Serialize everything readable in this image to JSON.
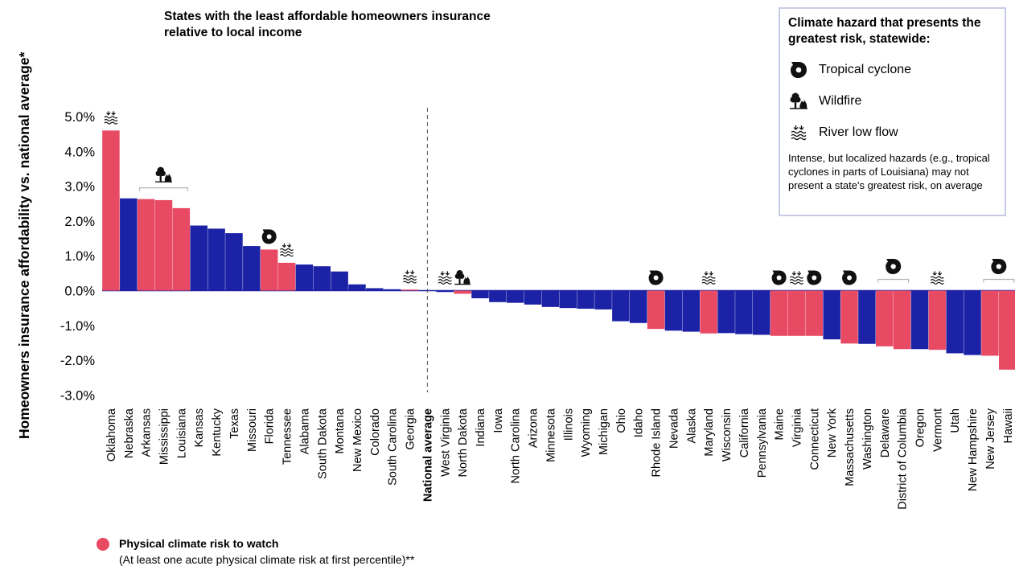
{
  "chart_data": {
    "type": "bar",
    "title": "States with the least affordable homeowners insurance relative to local income",
    "ylabel": "Homeowners insurance affordability vs. national average*",
    "ylim": [
      -3.0,
      5.0
    ],
    "yticks": [
      "5.0%",
      "4.0%",
      "3.0%",
      "2.0%",
      "1.0%",
      "0.0%",
      "-1.0%",
      "-2.0%",
      "-3.0%"
    ],
    "reference_category": "National average",
    "colors": {
      "risk": "#e84a63",
      "other": "#1b22a6"
    },
    "bars": [
      {
        "label": "Oklahoma",
        "value": 4.6,
        "risk": true,
        "icons": [
          "river"
        ]
      },
      {
        "label": "Nebraska",
        "value": 2.65,
        "risk": false,
        "icons": []
      },
      {
        "label": "Arkansas",
        "value": 2.63,
        "risk": true,
        "icons": []
      },
      {
        "label": "Mississippi",
        "value": 2.6,
        "risk": true,
        "icons": []
      },
      {
        "label": "Louisiana",
        "value": 2.37,
        "risk": true,
        "icons": []
      },
      {
        "label": "Kansas",
        "value": 1.87,
        "risk": false,
        "icons": []
      },
      {
        "label": "Kentucky",
        "value": 1.78,
        "risk": false,
        "icons": []
      },
      {
        "label": "Texas",
        "value": 1.65,
        "risk": false,
        "icons": []
      },
      {
        "label": "Missouri",
        "value": 1.28,
        "risk": false,
        "icons": []
      },
      {
        "label": "Florida",
        "value": 1.18,
        "risk": true,
        "icons": [
          "cyclone"
        ]
      },
      {
        "label": "Tennessee",
        "value": 0.8,
        "risk": true,
        "icons": [
          "river"
        ]
      },
      {
        "label": "Alabama",
        "value": 0.75,
        "risk": false,
        "icons": []
      },
      {
        "label": "South Dakota",
        "value": 0.7,
        "risk": false,
        "icons": []
      },
      {
        "label": "Montana",
        "value": 0.55,
        "risk": false,
        "icons": []
      },
      {
        "label": "New Mexico",
        "value": 0.18,
        "risk": false,
        "icons": []
      },
      {
        "label": "Colorado",
        "value": 0.07,
        "risk": false,
        "icons": []
      },
      {
        "label": "South Carolina",
        "value": 0.04,
        "risk": false,
        "icons": []
      },
      {
        "label": "Georgia",
        "value": 0.03,
        "risk": true,
        "icons": [
          "river"
        ]
      },
      {
        "label": "National average",
        "value": 0,
        "risk": false,
        "icons": [],
        "reference": true
      },
      {
        "label": "West Virginia",
        "value": -0.04,
        "risk": false,
        "icons": [
          "river"
        ]
      },
      {
        "label": "North Dakota",
        "value": -0.09,
        "risk": true,
        "icons": [
          "wildfire"
        ]
      },
      {
        "label": "Indiana",
        "value": -0.22,
        "risk": false,
        "icons": []
      },
      {
        "label": "Iowa",
        "value": -0.33,
        "risk": false,
        "icons": []
      },
      {
        "label": "North Carolina",
        "value": -0.35,
        "risk": false,
        "icons": []
      },
      {
        "label": "Arizona",
        "value": -0.4,
        "risk": false,
        "icons": []
      },
      {
        "label": "Minnesota",
        "value": -0.47,
        "risk": false,
        "icons": []
      },
      {
        "label": "Illinois",
        "value": -0.5,
        "risk": false,
        "icons": []
      },
      {
        "label": "Wyoming",
        "value": -0.52,
        "risk": false,
        "icons": []
      },
      {
        "label": "Michigan",
        "value": -0.54,
        "risk": false,
        "icons": []
      },
      {
        "label": "Ohio",
        "value": -0.88,
        "risk": false,
        "icons": []
      },
      {
        "label": "Idaho",
        "value": -0.93,
        "risk": false,
        "icons": []
      },
      {
        "label": "Rhode Island",
        "value": -1.1,
        "risk": true,
        "icons": [
          "cyclone"
        ]
      },
      {
        "label": "Nevada",
        "value": -1.15,
        "risk": false,
        "icons": []
      },
      {
        "label": "Alaska",
        "value": -1.18,
        "risk": false,
        "icons": []
      },
      {
        "label": "Maryland",
        "value": -1.23,
        "risk": true,
        "icons": [
          "river"
        ]
      },
      {
        "label": "Wisconsin",
        "value": -1.22,
        "risk": false,
        "icons": []
      },
      {
        "label": "California",
        "value": -1.25,
        "risk": false,
        "icons": []
      },
      {
        "label": "Pennsylvania",
        "value": -1.27,
        "risk": false,
        "icons": []
      },
      {
        "label": "Maine",
        "value": -1.3,
        "risk": true,
        "icons": [
          "cyclone"
        ]
      },
      {
        "label": "Virginia",
        "value": -1.3,
        "risk": true,
        "icons": [
          "river"
        ]
      },
      {
        "label": "Connecticut",
        "value": -1.3,
        "risk": true,
        "icons": [
          "cyclone"
        ]
      },
      {
        "label": "New York",
        "value": -1.4,
        "risk": false,
        "icons": []
      },
      {
        "label": "Massachusetts",
        "value": -1.52,
        "risk": true,
        "icons": [
          "cyclone"
        ]
      },
      {
        "label": "Washington",
        "value": -1.53,
        "risk": false,
        "icons": []
      },
      {
        "label": "Delaware",
        "value": -1.6,
        "risk": true,
        "icons": []
      },
      {
        "label": "District of Columbia",
        "value": -1.68,
        "risk": true,
        "icons": []
      },
      {
        "label": "Oregon",
        "value": -1.68,
        "risk": false,
        "icons": []
      },
      {
        "label": "Vermont",
        "value": -1.7,
        "risk": true,
        "icons": [
          "river"
        ]
      },
      {
        "label": "Utah",
        "value": -1.8,
        "risk": false,
        "icons": []
      },
      {
        "label": "New Hampshire",
        "value": -1.85,
        "risk": false,
        "icons": []
      },
      {
        "label": "New Jersey",
        "value": -1.87,
        "risk": true,
        "icons": []
      },
      {
        "label": "Hawaii",
        "value": -2.27,
        "risk": true,
        "icons": []
      }
    ],
    "group_icons": [
      {
        "from": "Arkansas",
        "to": "Louisiana",
        "icon": "wildfire"
      },
      {
        "from": "Delaware",
        "to": "District of Columbia",
        "icon": "cyclone"
      },
      {
        "from": "New Jersey",
        "to": "Hawaii",
        "icon": "cyclone"
      }
    ]
  },
  "legend": {
    "title": "Climate hazard that presents the greatest risk, statewide:",
    "items": [
      {
        "icon": "cyclone-icon",
        "label": "Tropical cyclone"
      },
      {
        "icon": "wildfire-icon",
        "label": "Wildfire"
      },
      {
        "icon": "river-low-flow-icon",
        "label": "River low flow"
      }
    ],
    "note": "Intense, but localized hazards (e.g., tropical cyclones in parts of Louisiana) may not present a state's greatest risk, on average"
  },
  "risk_legend": {
    "title": "Physical climate risk to watch",
    "subtitle": "(At least one acute physical climate risk at first percentile)**",
    "color": "#e84a63"
  }
}
